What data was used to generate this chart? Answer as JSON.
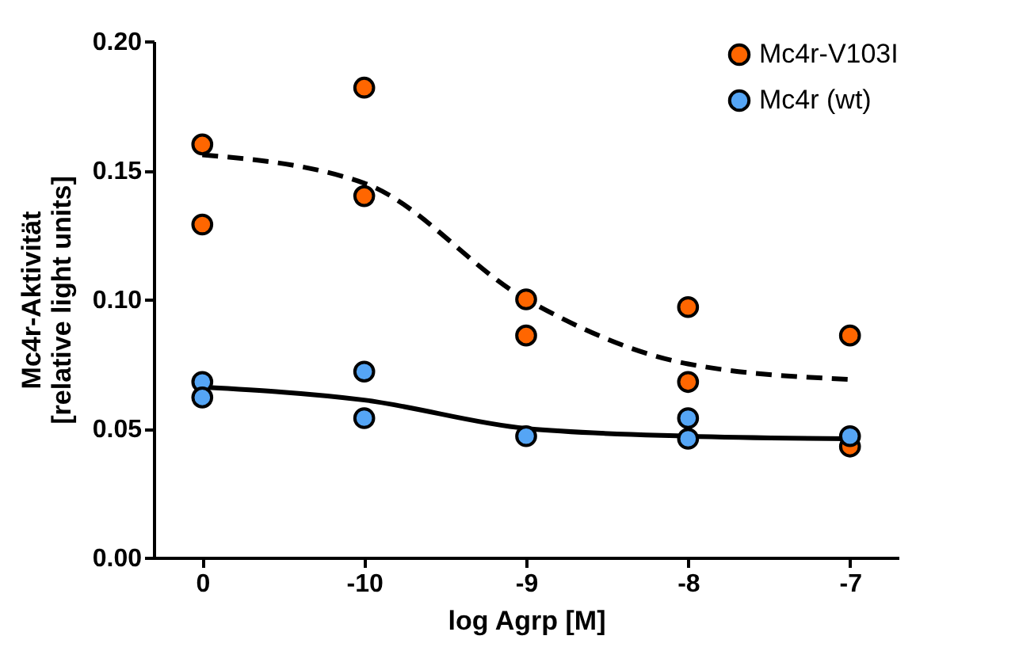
{
  "chart_data": {
    "type": "scatter",
    "xlabel": "log Agrp [M]",
    "ylabel": "Mc4r-Aktivität\n[relative light units]",
    "categories": [
      "0",
      "-10",
      "-9",
      "-8",
      "-7"
    ],
    "ylim": [
      0,
      0.2
    ],
    "yticks": [
      {
        "value": 0,
        "label": "0.00"
      },
      {
        "value": 0.05,
        "label": "0.05"
      },
      {
        "value": 0.1,
        "label": "0.10"
      },
      {
        "value": 0.15,
        "label": "0.15"
      },
      {
        "value": 0.2,
        "label": "0.20"
      }
    ],
    "legend": "top right",
    "series": [
      {
        "type": "line",
        "color": "#000000",
        "line_style": "dashed",
        "values": [
          0.156,
          0.145,
          0.1,
          0.075,
          0.069
        ]
      },
      {
        "type": "line",
        "color": "#000000",
        "line_style": "solid",
        "values": [
          0.066,
          0.061,
          0.05,
          0.047,
          0.046
        ]
      },
      {
        "type": "scatter",
        "name": "Mc4r-V103I",
        "color": "#ff6600",
        "marker": "circle",
        "x": [
          "0",
          "0",
          "-10",
          "-10",
          "-9",
          "-9",
          "-8",
          "-8",
          "-7",
          "-7"
        ],
        "values": [
          0.16,
          0.129,
          0.182,
          0.14,
          0.1,
          0.086,
          0.097,
          0.068,
          0.086,
          0.043
        ]
      },
      {
        "type": "scatter",
        "name": "Mc4r (wt)",
        "color": "#55a5f5",
        "marker": "circle",
        "x": [
          "0",
          "0",
          "-10",
          "-10",
          "-9",
          "-8",
          "-8",
          "-7"
        ],
        "values": [
          0.068,
          0.062,
          0.072,
          0.054,
          0.047,
          0.054,
          0.046,
          0.047
        ]
      }
    ]
  }
}
